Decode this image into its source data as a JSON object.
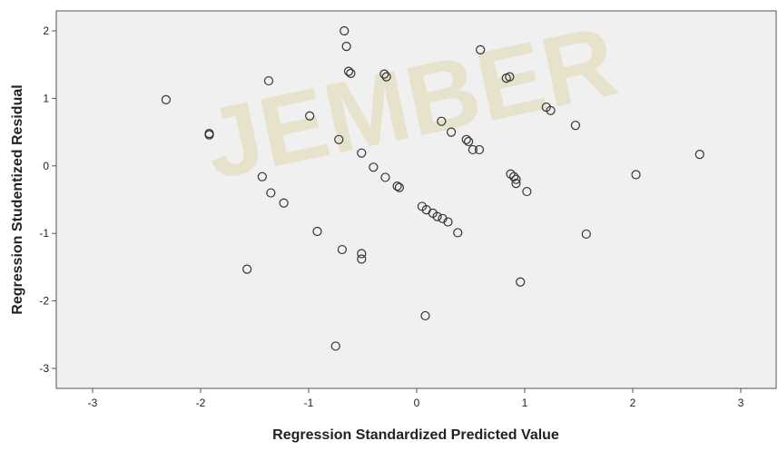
{
  "watermark": "JEMBER",
  "chart_data": {
    "type": "scatter",
    "x_label": "Regression Standardized Predicted Value",
    "y_label": "Regression Studentized Residual",
    "xlim": [
      -3.336,
      3.328
    ],
    "ylim": [
      -3.296,
      2.296
    ],
    "xticks": [
      -3,
      -2,
      -1,
      0,
      1,
      2,
      3
    ],
    "yticks": [
      -3,
      -2,
      -1,
      0,
      1,
      2
    ],
    "color": "#333333",
    "background": "#f0f0f0",
    "x": [
      -2.32,
      -1.92,
      -1.92,
      -1.37,
      -1.43,
      -1.35,
      -1.23,
      -1.57,
      -0.99,
      -0.92,
      -0.72,
      -0.69,
      -0.67,
      -0.65,
      -0.75,
      -0.51,
      -0.51,
      -0.51,
      -0.63,
      -0.61,
      -0.3,
      -0.28,
      -0.4,
      -0.29,
      -0.18,
      -0.16,
      0.05,
      0.09,
      0.15,
      0.19,
      0.24,
      0.29,
      0.38,
      0.08,
      0.23,
      0.32,
      0.46,
      0.48,
      0.52,
      0.58,
      0.59,
      0.83,
      0.86,
      0.87,
      0.9,
      0.92,
      0.92,
      1.02,
      0.96,
      1.2,
      1.24,
      1.47,
      1.57,
      2.03,
      2.62
    ],
    "y": [
      0.98,
      0.48,
      0.46,
      1.26,
      -0.16,
      -0.4,
      -0.55,
      -1.53,
      0.74,
      -0.97,
      0.39,
      -1.24,
      2.0,
      1.77,
      -2.67,
      0.19,
      -1.3,
      -1.38,
      1.4,
      1.37,
      1.36,
      1.32,
      -0.02,
      -0.17,
      -0.3,
      -0.32,
      -0.6,
      -0.65,
      -0.7,
      -0.75,
      -0.78,
      -0.83,
      -0.99,
      -2.22,
      0.66,
      0.5,
      0.39,
      0.36,
      0.24,
      0.24,
      1.72,
      1.3,
      1.32,
      -0.12,
      -0.16,
      -0.2,
      -0.26,
      -0.38,
      -1.72,
      0.87,
      0.82,
      0.6,
      -1.01,
      -0.13,
      0.17
    ]
  }
}
